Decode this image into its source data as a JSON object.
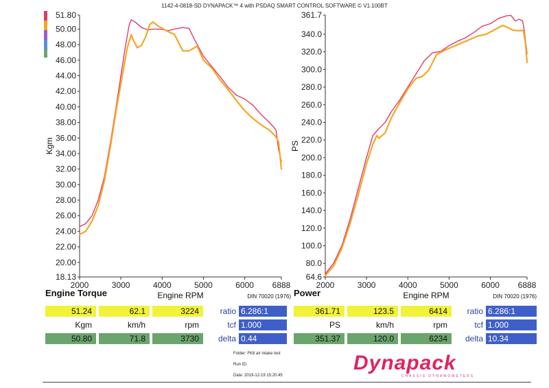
{
  "header": {
    "title": "1142-4-0818-SD DYNAPACK™ 4 with PSDAQ SMART CONTROL SOFTWARE © V1.100BT"
  },
  "chart_data": [
    {
      "type": "line",
      "ylabel": "Kgm",
      "xlabel": "Engine RPM",
      "note": "DIN 70020 (1976)",
      "xlim": [
        2000,
        6888
      ],
      "ylim": [
        18.13,
        51.8
      ],
      "xticks": [
        "2000",
        "3000",
        "4000",
        "5000",
        "6000",
        "6888"
      ],
      "yticks": [
        "51.80",
        "50.00",
        "48.00",
        "46.00",
        "44.00",
        "42.00",
        "40.00",
        "38.00",
        "36.00",
        "34.00",
        "32.00",
        "30.00",
        "28.00",
        "26.00",
        "24.00",
        "22.00",
        "20.00",
        "18.13"
      ],
      "series": [
        {
          "color": "#e03a6a",
          "points": [
            [
              2000,
              24.6
            ],
            [
              2150,
              25.0
            ],
            [
              2300,
              26.0
            ],
            [
              2450,
              28.0
            ],
            [
              2600,
              31.0
            ],
            [
              2750,
              35.5
            ],
            [
              2900,
              40.5
            ],
            [
              3000,
              44.0
            ],
            [
              3100,
              47.5
            ],
            [
              3200,
              50.5
            ],
            [
              3250,
              51.2
            ],
            [
              3350,
              50.9
            ],
            [
              3500,
              50.2
            ],
            [
              3650,
              49.9
            ],
            [
              3800,
              50.0
            ],
            [
              3950,
              50.0
            ],
            [
              4150,
              49.8
            ],
            [
              4300,
              50.0
            ],
            [
              4500,
              50.2
            ],
            [
              4650,
              50.1
            ],
            [
              4800,
              48.5
            ],
            [
              5000,
              46.5
            ],
            [
              5200,
              45.2
            ],
            [
              5400,
              43.9
            ],
            [
              5600,
              42.5
            ],
            [
              5800,
              41.5
            ],
            [
              6000,
              41.0
            ],
            [
              6200,
              40.2
            ],
            [
              6400,
              39.0
            ],
            [
              6600,
              38.0
            ],
            [
              6700,
              37.4
            ],
            [
              6760,
              37.0
            ],
            [
              6820,
              34.5
            ],
            [
              6888,
              33.0
            ]
          ]
        },
        {
          "color": "#f5a623",
          "points": [
            [
              2000,
              23.6
            ],
            [
              2150,
              24.0
            ],
            [
              2300,
              25.3
            ],
            [
              2450,
              27.3
            ],
            [
              2600,
              30.5
            ],
            [
              2750,
              35.0
            ],
            [
              2900,
              40.0
            ],
            [
              3050,
              44.5
            ],
            [
              3150,
              47.5
            ],
            [
              3250,
              49.3
            ],
            [
              3300,
              48.6
            ],
            [
              3400,
              47.6
            ],
            [
              3500,
              47.9
            ],
            [
              3600,
              49.0
            ],
            [
              3700,
              50.6
            ],
            [
              3780,
              50.9
            ],
            [
              3900,
              50.4
            ],
            [
              4100,
              49.8
            ],
            [
              4300,
              49.3
            ],
            [
              4500,
              47.2
            ],
            [
              4650,
              47.2
            ],
            [
              4850,
              47.8
            ],
            [
              5000,
              46.0
            ],
            [
              5200,
              45.0
            ],
            [
              5400,
              43.5
            ],
            [
              5600,
              42.2
            ],
            [
              5800,
              40.8
            ],
            [
              6000,
              39.5
            ],
            [
              6200,
              38.5
            ],
            [
              6400,
              37.7
            ],
            [
              6600,
              37.0
            ],
            [
              6750,
              36.2
            ],
            [
              6820,
              35.5
            ],
            [
              6850,
              34.0
            ],
            [
              6888,
              32.0
            ]
          ]
        }
      ]
    },
    {
      "type": "line",
      "ylabel": "PS",
      "xlabel": "Engine RPM",
      "note": "DIN 70020 (1976)",
      "xlim": [
        2000,
        6888
      ],
      "ylim": [
        64.6,
        361.7
      ],
      "xticks": [
        "2000",
        "3000",
        "4000",
        "5000",
        "6000",
        "6888"
      ],
      "yticks": [
        "361.7",
        "340.0",
        "320.0",
        "300.0",
        "280.0",
        "260.0",
        "240.0",
        "220.0",
        "200.0",
        "180.0",
        "160.0",
        "140.0",
        "120.0",
        "100.0",
        "80.0",
        "64.6"
      ],
      "series": [
        {
          "color": "#e03a6a",
          "points": [
            [
              2000,
              68.0
            ],
            [
              2200,
              80.0
            ],
            [
              2400,
              100.0
            ],
            [
              2600,
              130.0
            ],
            [
              2800,
              165.0
            ],
            [
              3000,
              200.0
            ],
            [
              3150,
              225.0
            ],
            [
              3300,
              233.0
            ],
            [
              3450,
              240.0
            ],
            [
              3600,
              252.0
            ],
            [
              3800,
              265.0
            ],
            [
              4000,
              280.0
            ],
            [
              4200,
              295.0
            ],
            [
              4400,
              310.0
            ],
            [
              4600,
              319.0
            ],
            [
              4800,
              320.5
            ],
            [
              5000,
              327.0
            ],
            [
              5200,
              332.0
            ],
            [
              5400,
              336.0
            ],
            [
              5600,
              342.0
            ],
            [
              5800,
              349.0
            ],
            [
              6000,
              352.0
            ],
            [
              6200,
              358.0
            ],
            [
              6400,
              361.0
            ],
            [
              6500,
              361.2
            ],
            [
              6600,
              355.0
            ],
            [
              6700,
              357.0
            ],
            [
              6780,
              355.0
            ],
            [
              6820,
              345.0
            ],
            [
              6888,
              318.0
            ]
          ]
        },
        {
          "color": "#f5a623",
          "points": [
            [
              2000,
              66.0
            ],
            [
              2200,
              77.0
            ],
            [
              2400,
              97.0
            ],
            [
              2600,
              125.0
            ],
            [
              2800,
              158.0
            ],
            [
              3000,
              193.0
            ],
            [
              3150,
              215.0
            ],
            [
              3250,
              225.0
            ],
            [
              3300,
              222.0
            ],
            [
              3450,
              228.0
            ],
            [
              3600,
              245.0
            ],
            [
              3800,
              262.0
            ],
            [
              4000,
              278.0
            ],
            [
              4200,
              290.0
            ],
            [
              4350,
              292.0
            ],
            [
              4500,
              299.0
            ],
            [
              4700,
              317.0
            ],
            [
              4900,
              322.0
            ],
            [
              5100,
              326.0
            ],
            [
              5300,
              330.0
            ],
            [
              5500,
              334.0
            ],
            [
              5700,
              338.0
            ],
            [
              5900,
              340.0
            ],
            [
              6100,
              345.0
            ],
            [
              6300,
              350.0
            ],
            [
              6400,
              348.0
            ],
            [
              6550,
              344.5
            ],
            [
              6700,
              344.0
            ],
            [
              6800,
              344.5
            ],
            [
              6850,
              330.0
            ],
            [
              6888,
              308.0
            ]
          ]
        }
      ]
    }
  ],
  "left": {
    "title": "Engine Torque",
    "row1": [
      "51.24",
      "62.1",
      "3224"
    ],
    "units": [
      "Kgm",
      "km/h",
      "rpm"
    ],
    "row2": [
      "50.80",
      "71.8",
      "3730"
    ],
    "labels": [
      "ratio",
      "tcf",
      "delta"
    ],
    "blue": [
      "6.286:1",
      "1.000",
      "0.44"
    ]
  },
  "right": {
    "title": "Power",
    "row1": [
      "361.71",
      "123.5",
      "6414"
    ],
    "units": [
      "PS",
      "km/h",
      "rpm"
    ],
    "row2": [
      "351.37",
      "120.0",
      "6234"
    ],
    "labels": [
      "ratio",
      "tcf",
      "delta"
    ],
    "blue": [
      "6.286:1",
      "1.000",
      "10.34"
    ]
  },
  "meta": {
    "folder": "Folder:  FK8 air intake test",
    "run": "Run ID:",
    "date": "Date:  2019-12-19 15:20:45"
  },
  "logo": {
    "word": "Dynapack",
    "sub": "CHASSIS DYNAMOMETERS"
  },
  "colors": {
    "run1": "#e03a6a",
    "run2": "#f5a623",
    "yellow": "#f2f23a",
    "green": "#6aa56d",
    "blue": "#3f5fc8"
  }
}
